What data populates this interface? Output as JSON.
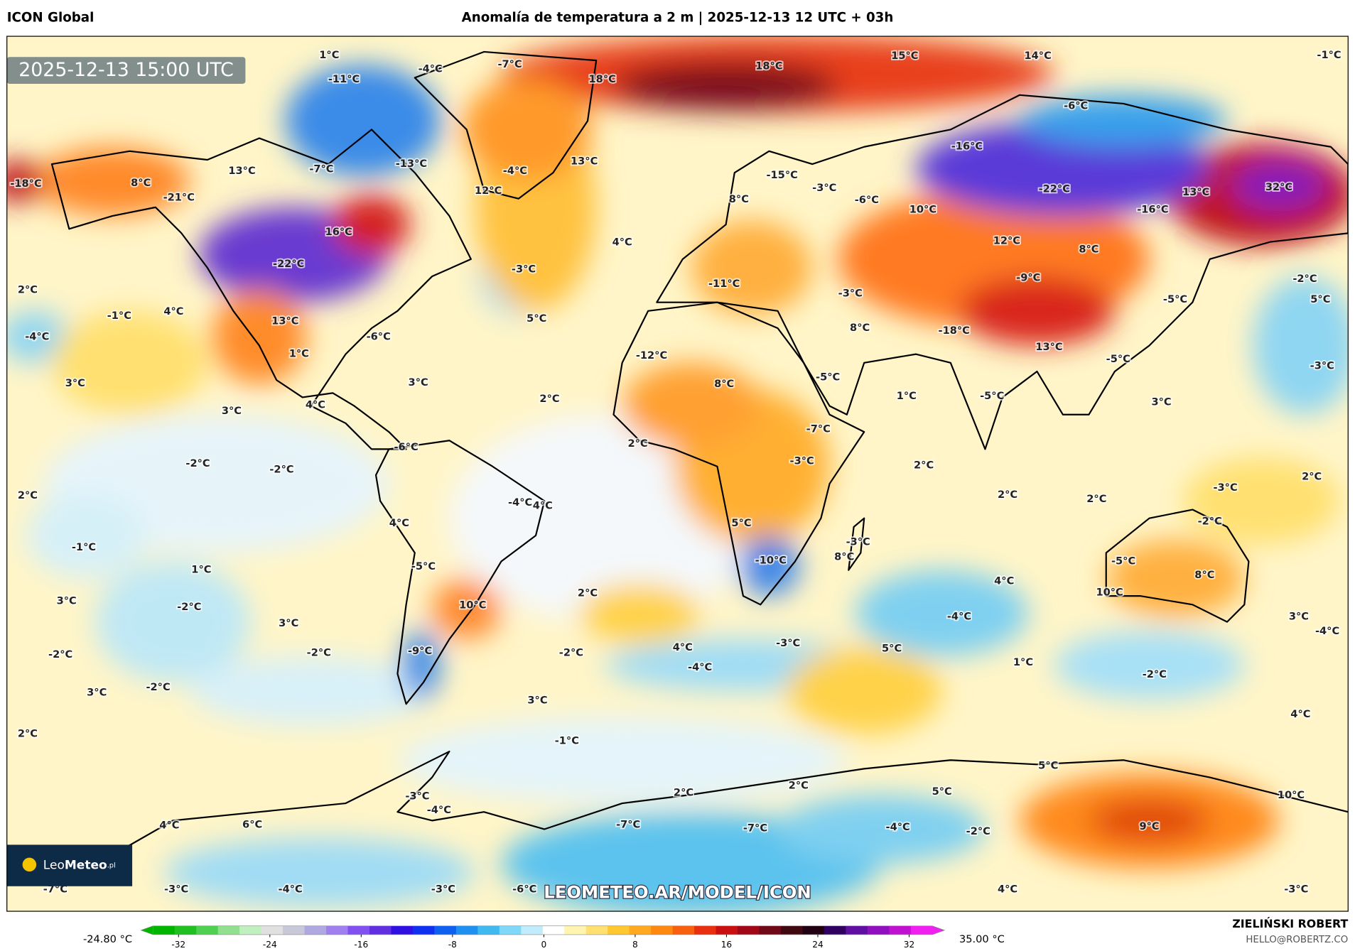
{
  "header": {
    "left": "ICON Global",
    "title": "Anomalía de temperatura a 2 m | 2025-12-13 12 UTC + 03h"
  },
  "map": {
    "timestamp": "2025-12-13 15:00 UTC",
    "watermark": "LEOMETEO.AR/MODEL/ICON",
    "logo": {
      "leo": "Leo",
      "meteo": "Meteo",
      "domain": ".pl"
    },
    "labels": [
      "1°C",
      "-4°C",
      "-7°C",
      "18°C",
      "18°C",
      "15°C",
      "14°C",
      "-1°C",
      "-11°C",
      "-6°C",
      "-18°C",
      "8°C",
      "13°C",
      "-7°C",
      "-13°C",
      "13°C",
      "-4°C",
      "12°C",
      "-21°C",
      "-15°C",
      "-3°C",
      "-16°C",
      "-22°C",
      "13°C",
      "32°C",
      "16°C",
      "8°C",
      "-6°C",
      "10°C",
      "-16°C",
      "-22°C",
      "4°C",
      "12°C",
      "8°C",
      "-3°C",
      "2°C",
      "-11°C",
      "-9°C",
      "-3°C",
      "-2°C",
      "-1°C",
      "4°C",
      "13°C",
      "5°C",
      "8°C",
      "-18°C",
      "-5°C",
      "5°C",
      "-4°C",
      "-6°C",
      "1°C",
      "-12°C",
      "13°C",
      "-5°C",
      "-3°C",
      "3°C",
      "3°C",
      "8°C",
      "-5°C",
      "1°C",
      "-5°C",
      "3°C",
      "4°C",
      "2°C",
      "3°C",
      "-7°C",
      "-6°C",
      "2°C",
      "-3°C",
      "2°C",
      "-2°C",
      "-2°C",
      "2°C",
      "2°C",
      "-4°C",
      "4°C",
      "2°C",
      "-3°C",
      "2°C",
      "4°C",
      "5°C",
      "-2°C",
      "-3°C",
      "-1°C",
      "8°C",
      "-10°C",
      "-5°C",
      "1°C",
      "8°C",
      "3°C",
      "-5°C",
      "4°C",
      "10°C",
      "2°C",
      "10°C",
      "-2°C",
      "3°C",
      "-4°C",
      "3°C",
      "-2°C",
      "-2°C",
      "-2°C",
      "-9°C",
      "4°C",
      "-3°C",
      "5°C",
      "-4°C",
      "1°C",
      "-2°C",
      "-4°C",
      "3°C",
      "-2°C",
      "3°C",
      "4°C",
      "2°C",
      "-1°C",
      "5°C",
      "5°C",
      "2°C",
      "2°C",
      "-3°C",
      "-4°C",
      "10°C",
      "4°C",
      "6°C",
      "-7°C",
      "-7°C",
      "-4°C",
      "-2°C",
      "9°C",
      "-7°C",
      "-3°C",
      "-4°C",
      "-3°C",
      "-6°C",
      "4°C",
      "-3°C"
    ]
  },
  "colorbar": {
    "min_label": "-24.80 °C",
    "max_label": "35.00 °C",
    "lim": [
      -35.3,
      35.1
    ],
    "ticks": [
      -32,
      -24,
      -16,
      -8,
      0,
      8,
      16,
      24,
      32
    ],
    "colors": [
      "#00b400",
      "#20c020",
      "#50d050",
      "#90e090",
      "#c0f0c0",
      "#e0e0e0",
      "#c8c8d8",
      "#b0a8e0",
      "#a080f0",
      "#8050f0",
      "#6030e0",
      "#3010e0",
      "#1030f0",
      "#1060f0",
      "#2090f0",
      "#40b8f0",
      "#80d8f8",
      "#c0ecfc",
      "#ffffff",
      "#fff4b0",
      "#ffe070",
      "#ffc830",
      "#ffa820",
      "#ff8810",
      "#f86010",
      "#e83010",
      "#c81010",
      "#a00818",
      "#700818",
      "#400810",
      "#200010",
      "#300060",
      "#6010a0",
      "#9010c0",
      "#c010d0",
      "#f020f0"
    ]
  },
  "footer": {
    "author": "ZIELIŃSKI ROBERT",
    "email": "HELLO@ROBERTZ.CO"
  }
}
